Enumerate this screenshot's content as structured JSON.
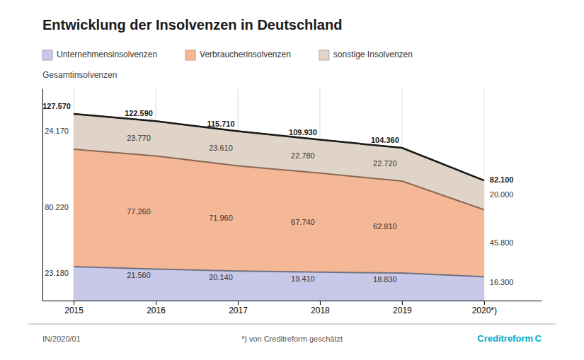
{
  "chart_data": {
    "type": "area",
    "stacked": true,
    "title": "Entwicklung der Insolvenzen in Deutschland",
    "x": [
      2015,
      2016,
      2017,
      2018,
      2019,
      2020
    ],
    "xlim": [
      2014.62,
      2020.7
    ],
    "xticks": [
      2015,
      2016,
      2017,
      2018,
      2019,
      {
        "value": 2020,
        "label": "2020*)"
      }
    ],
    "ylim": [
      0,
      145000
    ],
    "yticks": [],
    "tick_labels": "x",
    "grid": true,
    "legend": "top",
    "data_labels": true,
    "series": [
      {
        "name": "Unternehmensinsolvenzen",
        "color": "#c8c8e8",
        "values": [
          23180,
          21560,
          20140,
          19410,
          18830,
          16300
        ],
        "value_labels": [
          "23.180",
          "21.560",
          "20.140",
          "19.410",
          "18.830",
          "16.300"
        ]
      },
      {
        "name": "Verbraucherinsolvenzen",
        "color": "#f5b896",
        "values": [
          80220,
          77260,
          71960,
          67740,
          62810,
          45800
        ],
        "value_labels": [
          "80.220",
          "77.260",
          "71.960",
          "67.740",
          "62.810",
          "45.800"
        ]
      },
      {
        "name": "sonstige Insolvenzen",
        "color": "#e0d4c8",
        "values": [
          24170,
          23770,
          23610,
          22780,
          22720,
          20000
        ],
        "value_labels": [
          "24.170",
          "23.770",
          "23.610",
          "22.780",
          "22.720",
          "20.000"
        ]
      }
    ],
    "total": {
      "name": "Gesamtinsolvenzen",
      "type": "line",
      "color": "#1a1a1a",
      "values": [
        127570,
        122590,
        115710,
        109930,
        104360,
        82100
      ],
      "value_labels": [
        "127.570",
        "122.590",
        "115.710",
        "109.930",
        "104.360",
        "82.100"
      ]
    },
    "annotations": [
      "IN/2020/01",
      "*) von Creditreform geschätzt",
      "Creditreform C"
    ]
  }
}
